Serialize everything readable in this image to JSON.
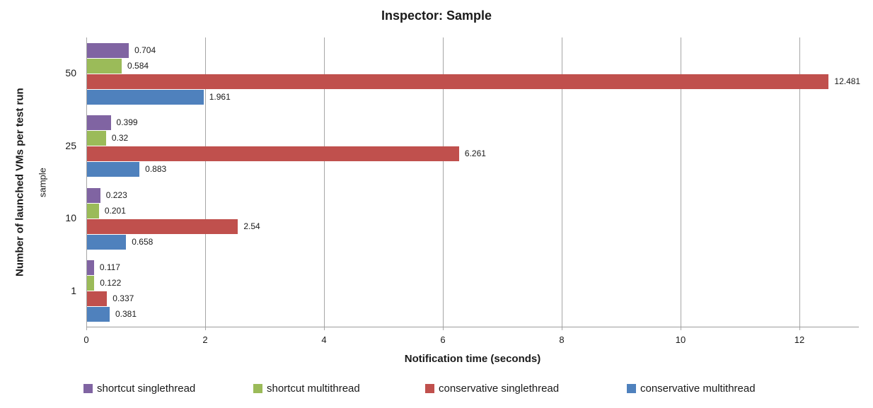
{
  "chart_data": {
    "type": "bar",
    "orientation": "horizontal",
    "title": "Inspector: Sample",
    "xlabel": "Notification time (seconds)",
    "ylabel_outer": "Number of launched VMs per test run",
    "ylabel_inner": "sample",
    "categories": [
      "50",
      "25",
      "10",
      "1"
    ],
    "series": [
      {
        "name": "shortcut singlethread",
        "color": "#8064A2",
        "values": [
          0.704,
          0.399,
          0.223,
          0.117
        ],
        "labels": [
          "0.704",
          "0.399",
          "0.223",
          "0.117"
        ]
      },
      {
        "name": "shortcut multithread",
        "color": "#9BBB59",
        "values": [
          0.584,
          0.32,
          0.201,
          0.122
        ],
        "labels": [
          "0.584",
          "0.32",
          "0.201",
          "0.122"
        ]
      },
      {
        "name": "conservative singlethread",
        "color": "#C0504D",
        "values": [
          12.481,
          6.261,
          2.54,
          0.337
        ],
        "labels": [
          "12.481",
          "6.261",
          "2.54",
          "0.337"
        ]
      },
      {
        "name": "conservative multithread",
        "color": "#4F81BD",
        "values": [
          1.961,
          0.883,
          0.658,
          0.381
        ],
        "labels": [
          "1.961",
          "0.883",
          "0.658",
          "0.381"
        ]
      }
    ],
    "xlim": [
      0,
      13
    ],
    "xticks": [
      "0",
      "2",
      "4",
      "6",
      "8",
      "10",
      "12"
    ],
    "grid": true,
    "legend_position": "bottom",
    "gridline_color": "#A6A6A6",
    "text_color": "#1A1A1A",
    "background_color": "#FFFFFF"
  }
}
